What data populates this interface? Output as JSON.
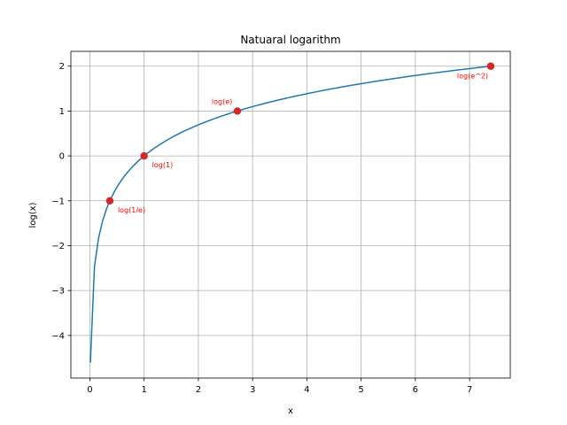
{
  "chart_data": {
    "type": "line",
    "title": "Natuaral logarithm",
    "xlabel": "x",
    "ylabel": "log(x)",
    "xlim": [
      -0.35,
      7.75
    ],
    "ylim": [
      -4.95,
      2.33
    ],
    "xticks": [
      0,
      1,
      2,
      3,
      4,
      5,
      6,
      7
    ],
    "yticks": [
      -4,
      -3,
      -2,
      -1,
      0,
      1,
      2
    ],
    "xtick_labels": [
      "0",
      "1",
      "2",
      "3",
      "4",
      "5",
      "6",
      "7"
    ],
    "ytick_labels": [
      "−4",
      "−3",
      "−2",
      "−1",
      "0",
      "1",
      "2"
    ],
    "grid": true,
    "series": [
      {
        "function": "ln(x)",
        "x_range": [
          0.01,
          7.389
        ],
        "color": "#1f77b4"
      }
    ],
    "points": [
      {
        "x": 0.3679,
        "y": -1,
        "label": "log(1/e)",
        "label_side": "right-below"
      },
      {
        "x": 1,
        "y": 0,
        "label": "log(1)",
        "label_side": "right-below"
      },
      {
        "x": 2.7183,
        "y": 1,
        "label": "log(e)",
        "label_side": "left-above"
      },
      {
        "x": 7.3891,
        "y": 2,
        "label": "log(e^2)",
        "label_side": "left-below"
      }
    ],
    "point_color": "#d62728",
    "annotation_color": "#ff0000"
  }
}
